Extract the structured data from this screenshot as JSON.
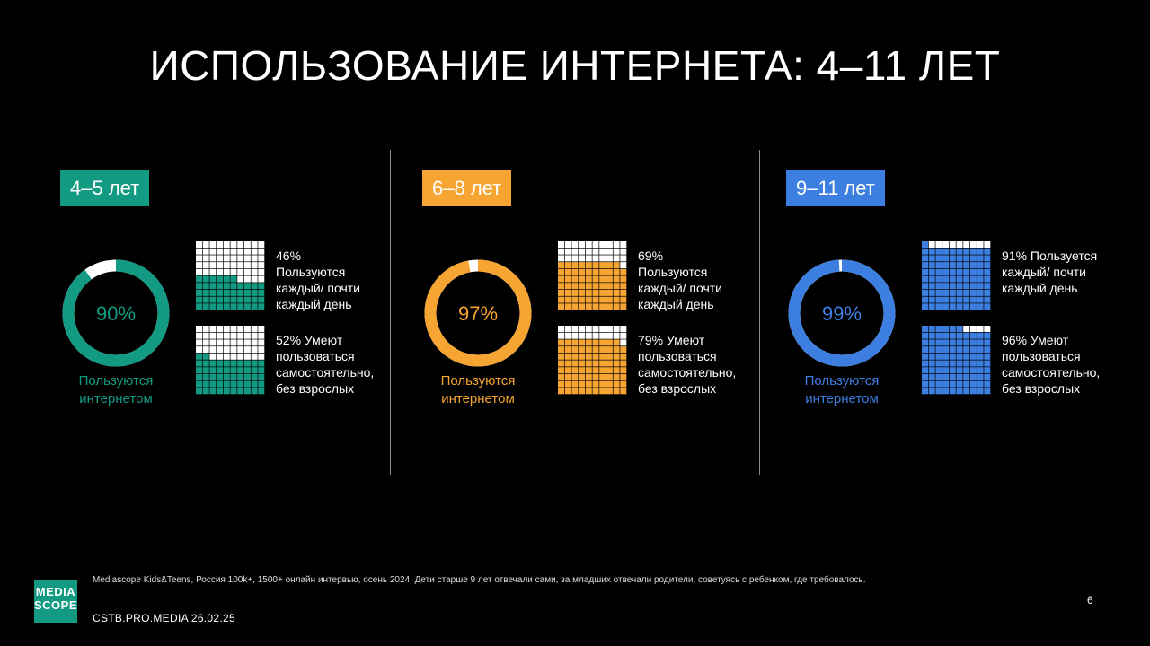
{
  "title": "ИСПОЛЬЗОВАНИЕ ИНТЕРНЕТА: 4–11 ЛЕТ",
  "colors": {
    "teal": "#129b82",
    "orange": "#f6a432",
    "blue": "#3d7fe0",
    "empty": "#ffffff"
  },
  "chart_data": [
    {
      "type": "pie",
      "badge": "4–5 лет",
      "color": "#129b82",
      "donut": {
        "value": 90,
        "label": "90%",
        "caption_line1": "Пользуются",
        "caption_line2": "интернетом"
      },
      "waffles": [
        {
          "value": 46,
          "text": "46%\nПользуются\nкаждый/ почти\nкаждый день"
        },
        {
          "value": 52,
          "text": "52% Умеют\nпользоваться\nсамостоятельно,\nбез взрослых"
        }
      ]
    },
    {
      "type": "pie",
      "badge": "6–8 лет",
      "color": "#f6a432",
      "donut": {
        "value": 97,
        "label": "97%",
        "caption_line1": "Пользуются",
        "caption_line2": "интернетом"
      },
      "waffles": [
        {
          "value": 69,
          "text": "69%\nПользуются\nкаждый/ почти\nкаждый день"
        },
        {
          "value": 79,
          "text": "79% Умеют\nпользоваться\nсамостоятельно,\nбез взрослых"
        }
      ]
    },
    {
      "type": "pie",
      "badge": "9–11 лет",
      "color": "#3d7fe0",
      "donut": {
        "value": 99,
        "label": "99%",
        "caption_line1": "Пользуются",
        "caption_line2": "интернетом"
      },
      "waffles": [
        {
          "value": 91,
          "text": "91% Пользуется\nкаждый/ почти\nкаждый день"
        },
        {
          "value": 96,
          "text": "96% Умеют\nпользоваться\nсамостоятельно,\nбез взрослых"
        }
      ]
    }
  ],
  "footer": {
    "logo_line1": "MEDIA",
    "logo_line2": "SCOPE",
    "footnote": "Mediascope Kids&Teens, Россия 100k+, 1500+ онлайн интервью, осень 2024. Дети старше 9 лет отвечали сами, за младших отвечали родители, советуясь с ребенком, где требовалось.",
    "credit": "CSTB.PRO.MEDIA 26.02.25",
    "page_number": "6"
  }
}
